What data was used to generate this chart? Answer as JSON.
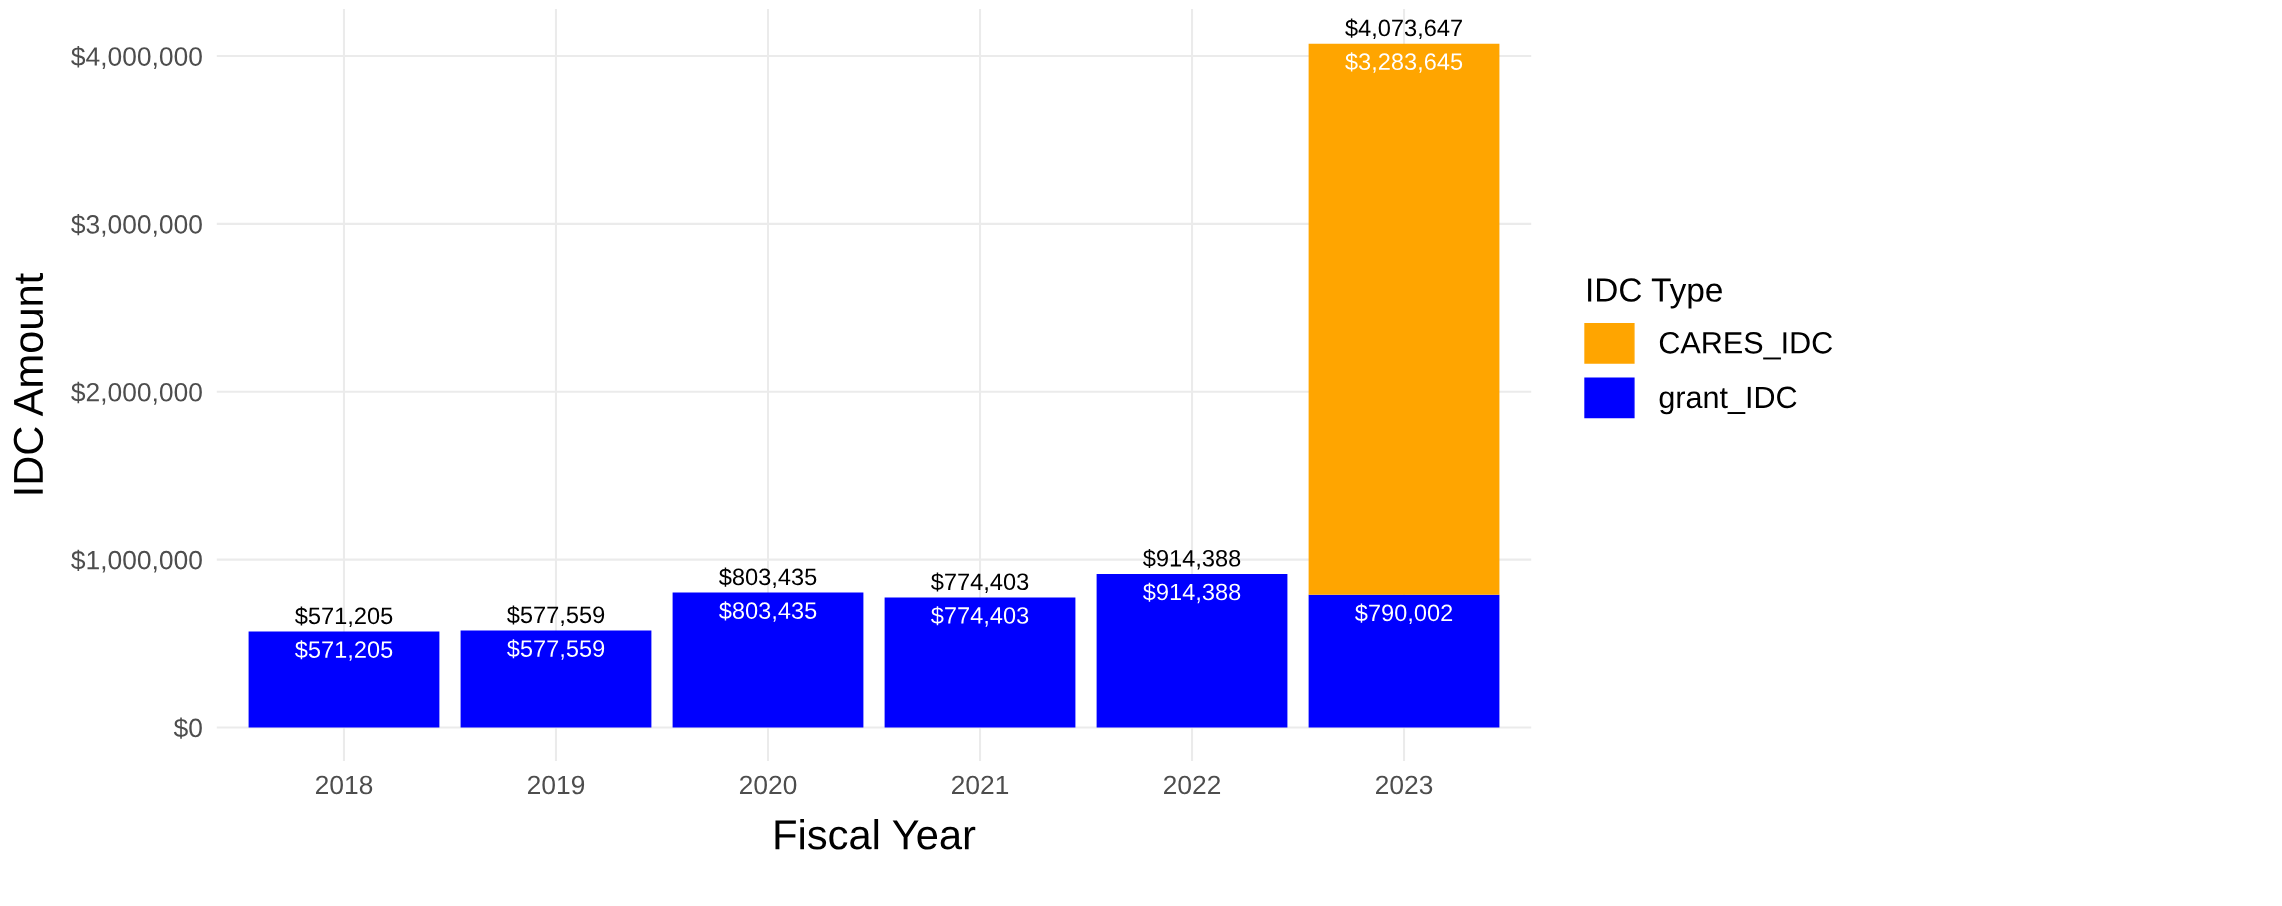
{
  "chart_data": {
    "type": "bar",
    "stacked": true,
    "xlabel": "Fiscal Year",
    "ylabel": "IDC Amount",
    "legend_title": "IDC Type",
    "legend": "right",
    "grid": true,
    "categories": [
      "2018",
      "2019",
      "2020",
      "2021",
      "2022",
      "2023"
    ],
    "series": [
      {
        "name": "grant_IDC",
        "color": "#0000ff",
        "values": [
          571205,
          577559,
          803435,
          774403,
          914388,
          790002
        ],
        "value_labels": [
          "$571,205",
          "$577,559",
          "$803,435",
          "$774,403",
          "$914,388",
          "$790,002"
        ]
      },
      {
        "name": "CARES_IDC",
        "color": "#ffa500",
        "values": [
          null,
          null,
          null,
          null,
          null,
          3283645
        ],
        "value_labels": [
          null,
          null,
          null,
          null,
          null,
          "$3,283,645"
        ]
      }
    ],
    "totals": [
      "$571,205",
      "$577,559",
      "$803,435",
      "$774,403",
      "$914,388",
      "$4,073,647"
    ],
    "ylim": [
      -200000,
      4280000
    ],
    "yticks": [
      {
        "value": 0,
        "label": "$0"
      },
      {
        "value": 1000000,
        "label": "$1,000,000"
      },
      {
        "value": 2000000,
        "label": "$2,000,000"
      },
      {
        "value": 3000000,
        "label": "$3,000,000"
      },
      {
        "value": 4000000,
        "label": "$4,000,000"
      }
    ]
  }
}
